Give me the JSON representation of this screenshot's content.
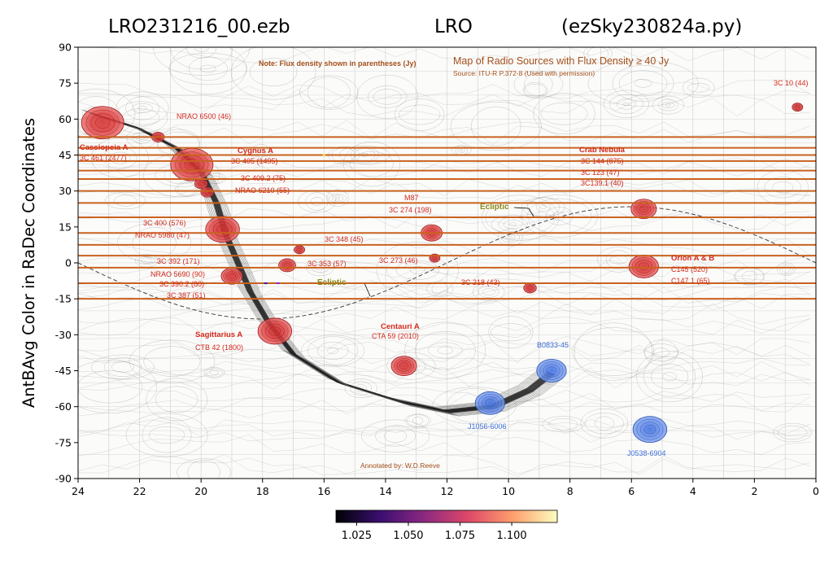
{
  "chart_data": {
    "type": "line",
    "title": {
      "left": "LRO231216_00.ezb",
      "center": "LRO",
      "right": "(ezSky230824a.py)"
    },
    "ylabel": "AntBAvg Color in RaDec Coordinates",
    "xlabel": "",
    "x_axis": {
      "reversed": true,
      "xlim": [
        24,
        0
      ],
      "ticks": [
        24,
        22,
        20,
        18,
        16,
        14,
        12,
        10,
        8,
        6,
        4,
        2,
        0
      ],
      "tick_labels": [
        "24",
        "22",
        "20",
        "18",
        "16",
        "14",
        "12",
        "10",
        "8",
        "6",
        "4",
        "2",
        "0"
      ]
    },
    "y_axis": {
      "ylim": [
        -90,
        90
      ],
      "ticks": [
        90,
        75,
        60,
        45,
        30,
        15,
        0,
        -15,
        -30,
        -45,
        -60,
        -75,
        -90
      ],
      "tick_labels": [
        "90",
        "75",
        "60",
        "45",
        "30",
        "15",
        "0",
        "-15",
        "-30",
        "-45",
        "-60",
        "-75",
        "-90"
      ]
    },
    "grid": false,
    "scan_declinations": [
      52.5,
      48,
      45,
      42.5,
      38.5,
      35,
      30,
      25,
      19,
      12.5,
      7.5,
      3,
      -2,
      -8.5,
      -15
    ],
    "scan_color": "#c9621e",
    "colorbar": {
      "tick_labels": [
        "1.025",
        "1.050",
        "1.075",
        "1.100"
      ],
      "colors": [
        "#000004",
        "#3b0f70",
        "#8c2981",
        "#de4968",
        "#fe9f6d",
        "#fcfdbf"
      ],
      "range": [
        1.015,
        1.122
      ],
      "ticks": [
        1.025,
        1.05,
        1.075,
        1.1
      ]
    },
    "background_map": {
      "header": "Map of Radio Sources with Flux Density ≥ 40 Jy",
      "source": "Source: ITU-R P.372-8 (Used with permission)",
      "note": "Note: Flux density shown in parentheses (Jy)",
      "annotated_by": "Annotated by: W.D.Reeve",
      "ecliptic_labels": [
        "Ecliptic",
        "Ecliptic"
      ]
    },
    "sources_north": [
      {
        "ra": 23.2,
        "dec": 58.5,
        "size": 1.0
      },
      {
        "ra": 21.4,
        "dec": 52.5,
        "size": 0.3
      },
      {
        "ra": 20.3,
        "dec": 41,
        "size": 1.0
      },
      {
        "ra": 20.0,
        "dec": 33,
        "size": 0.3
      },
      {
        "ra": 19.8,
        "dec": 29.5,
        "size": 0.3
      },
      {
        "ra": 19.3,
        "dec": 14,
        "size": 0.8
      },
      {
        "ra": 16.8,
        "dec": 5.5,
        "size": 0.25
      },
      {
        "ra": 17.2,
        "dec": -1,
        "size": 0.4
      },
      {
        "ra": 12.5,
        "dec": 12.5,
        "size": 0.5
      },
      {
        "ra": 12.4,
        "dec": 2,
        "size": 0.25
      },
      {
        "ra": 19.0,
        "dec": -5.5,
        "size": 0.5
      },
      {
        "ra": 17.6,
        "dec": -28.5,
        "size": 0.8
      },
      {
        "ra": 13.4,
        "dec": -43,
        "size": 0.6
      },
      {
        "ra": 9.3,
        "dec": -10.5,
        "size": 0.3
      },
      {
        "ra": 5.6,
        "dec": 22.5,
        "size": 0.6
      },
      {
        "ra": 5.6,
        "dec": -1.5,
        "size": 0.7
      },
      {
        "ra": 0.6,
        "dec": 65,
        "size": 0.25
      }
    ],
    "sources_south": [
      {
        "ra": 10.6,
        "dec": -58.5,
        "size": 0.7
      },
      {
        "ra": 8.6,
        "dec": -45,
        "size": 0.7
      },
      {
        "ra": 5.4,
        "dec": -69.5,
        "size": 0.8
      }
    ],
    "labels": [
      {
        "text": "Cassiopeia A",
        "style": "bold"
      },
      {
        "text": "3C 461 (2477)",
        "style": "normal"
      },
      {
        "text": "NRAO 6500 (46)",
        "style": "normal"
      },
      {
        "text": "Cygnus A",
        "style": "bold"
      },
      {
        "text": "3C 405 (1495)",
        "style": "normal"
      },
      {
        "text": "3C 409.2 (75)",
        "style": "normal"
      },
      {
        "text": "NRAO 6210 (55)",
        "style": "normal"
      },
      {
        "text": "3C 400 (576)",
        "style": "normal"
      },
      {
        "text": "NRAO 5980 (47)",
        "style": "normal"
      },
      {
        "text": "3C 348 (45)",
        "style": "normal"
      },
      {
        "text": "3C 392 (171)",
        "style": "normal"
      },
      {
        "text": "3C 353 (57)",
        "style": "normal"
      },
      {
        "text": "NRAO 5690 (90)",
        "style": "normal"
      },
      {
        "text": "3C 390.2 (80)",
        "style": "normal"
      },
      {
        "text": "3C 387 (51)",
        "style": "normal"
      },
      {
        "text": "Sagittarius A",
        "style": "bold"
      },
      {
        "text": "CTB 42 (1800)",
        "style": "normal"
      },
      {
        "text": "Centauri A",
        "style": "bold"
      },
      {
        "text": "CTA 59 (2010)",
        "style": "normal"
      },
      {
        "text": "M87",
        "style": "normal"
      },
      {
        "text": "3C 274 (198)",
        "style": "normal"
      },
      {
        "text": "3C 273 (46)",
        "style": "normal"
      },
      {
        "text": "3C 218 (43)",
        "style": "normal"
      },
      {
        "text": "Crab Nebula",
        "style": "bold"
      },
      {
        "text": "3C 144 (875)",
        "style": "normal"
      },
      {
        "text": "3C 123 (47)",
        "style": "normal"
      },
      {
        "text": "3C139.1 (40)",
        "style": "normal"
      },
      {
        "text": "Orion A & B",
        "style": "bold"
      },
      {
        "text": "C145 (520)",
        "style": "normal"
      },
      {
        "text": "C147.1 (65)",
        "style": "normal"
      },
      {
        "text": "3C 10 (44)",
        "style": "normal"
      },
      {
        "text": "B0833-45",
        "style": "blue"
      },
      {
        "text": "J1056-6006",
        "style": "blue"
      },
      {
        "text": "J0538-6904",
        "style": "blue"
      }
    ]
  }
}
